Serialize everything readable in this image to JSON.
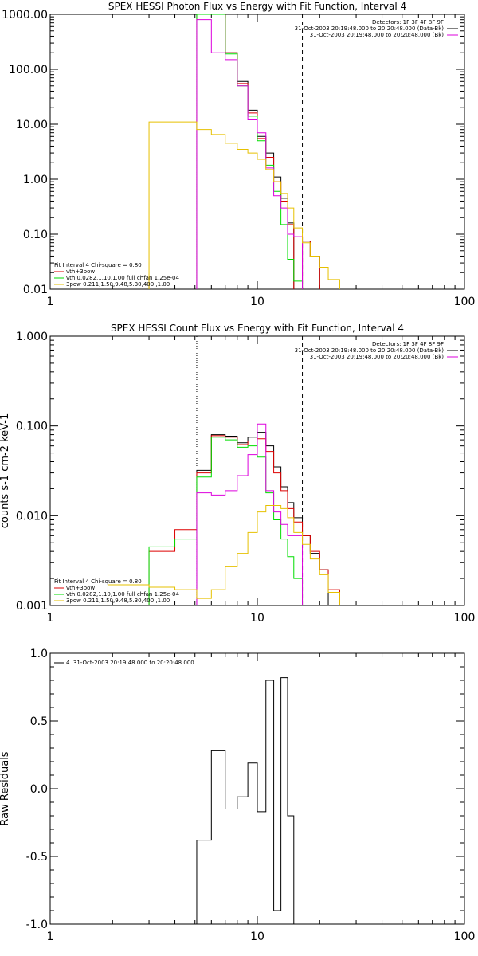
{
  "chart_data": [
    {
      "type": "line",
      "title": "SPEX HESSI Photon Flux vs Energy with Fit Function, Interval 4",
      "xlabel": "",
      "ylabel": "",
      "xscale": "log",
      "yscale": "log",
      "xlim": [
        1,
        100
      ],
      "ylim": [
        0.01,
        1000
      ],
      "x_ticks": [
        1,
        10,
        100
      ],
      "x_tick_labels": [
        "1",
        "10",
        "100"
      ],
      "y_ticks": [
        0.01,
        0.1,
        1,
        10,
        100,
        1000
      ],
      "y_tick_labels": [
        "0.01",
        "0.10",
        "1.00",
        "10.00",
        "100.00",
        "1000.00"
      ],
      "vlines": [
        {
          "x": 5.1,
          "style": "dotted",
          "color": "#cc00cc"
        },
        {
          "x": 16.5,
          "style": "dashed",
          "color": "#000000"
        }
      ],
      "legend_right": [
        "Detectors: 1F 3F 4F 8F 9F",
        "31-Oct-2003 20:19:48.000 to 20:20:48.000 (Data-Bk)",
        "31-Oct-2003 20:19:48.000 to 20:20:48.000 (Bk)"
      ],
      "legend_left": [
        "Fit Interval 4   Chi-square = 0.80",
        "vth+3pow",
        "vth 0.0282,1.10,1.00  full chfan 1.25e-04",
        "3pow 0.211,1.50,9.48,5.30,400.,1.00"
      ],
      "series": [
        {
          "color": "#000000",
          "edges": [
            5.1,
            6.0,
            7.0,
            8.0,
            9.0,
            10.0,
            11.0,
            12.0,
            13.0,
            14.0,
            15.0,
            16.5,
            18.0,
            20.0,
            22.0,
            25.0
          ],
          "values": [
            1000,
            1000,
            200,
            60,
            18,
            6,
            3,
            1.1,
            0.45,
            0.16,
            null,
            0.075,
            0.04,
            null,
            null
          ]
        },
        {
          "color": "#dd0000",
          "edges": [
            5.1,
            6.0,
            7.0,
            8.0,
            9.0,
            10.0,
            11.0,
            12.0,
            13.0,
            14.0,
            15.0,
            16.5,
            18.0,
            20.0,
            22.0,
            25.0
          ],
          "values": [
            1000,
            1000,
            200,
            55,
            16,
            5.5,
            2.5,
            0.9,
            0.4,
            0.15,
            null,
            0.075,
            0.04,
            null,
            null
          ]
        },
        {
          "color": "#00dd00",
          "edges": [
            5.1,
            6.0,
            7.0,
            8.0,
            9.0,
            10.0,
            11.0,
            12.0,
            13.0,
            14.0,
            15.0,
            16.5
          ],
          "values": [
            1000,
            1000,
            190,
            50,
            14,
            5,
            1.8,
            0.6,
            0.15,
            0.035,
            0.014
          ]
        },
        {
          "color": "#dd00dd",
          "edges": [
            5.1,
            6.0,
            7.0,
            8.0,
            9.0,
            10.0,
            11.0,
            12.0,
            13.0,
            14.0,
            15.0,
            16.5
          ],
          "values": [
            800,
            200,
            150,
            50,
            12,
            7,
            1.6,
            0.5,
            0.3,
            0.1,
            0.09
          ]
        },
        {
          "color": "#e6c000",
          "edges": [
            3.0,
            4.0,
            5.1,
            6.0,
            7.0,
            8.0,
            9.0,
            10.0,
            11.0,
            12.0,
            13.0,
            14.0,
            15.0,
            16.5,
            18.0,
            20.0,
            22.0,
            25.0
          ],
          "values": [
            11,
            11,
            8,
            6.5,
            4.5,
            3.5,
            3,
            2.3,
            1.5,
            0.9,
            0.55,
            0.3,
            0.13,
            0.07,
            0.04,
            0.025,
            0.015
          ]
        }
      ]
    },
    {
      "type": "line",
      "title": "SPEX HESSI Count Flux vs Energy with Fit Function, Interval 4",
      "xlabel": "",
      "ylabel": "counts s-1 cm-2 keV-1",
      "xscale": "log",
      "yscale": "log",
      "xlim": [
        1,
        100
      ],
      "ylim": [
        0.001,
        1
      ],
      "x_ticks": [
        1,
        10,
        100
      ],
      "x_tick_labels": [
        "1",
        "10",
        "100"
      ],
      "y_ticks": [
        0.001,
        0.01,
        0.1,
        1
      ],
      "y_tick_labels": [
        "0.001",
        "0.010",
        "0.100",
        "1.000"
      ],
      "vlines": [
        {
          "x": 5.1,
          "style": "dotted",
          "color": "#000000"
        },
        {
          "x": 16.5,
          "style": "dashed",
          "color": "#000000"
        }
      ],
      "legend_right": [
        "Detectors: 1F 3F 4F 8F 9F",
        "31-Oct-2003 20:19:48.000 to 20:20:48.000 (Data-Bk)",
        "31-Oct-2003 20:19:48.000 to 20:20:48.000 (Bk)"
      ],
      "legend_left": [
        "Fit Interval 4   Chi-square = 0.80",
        "vth+3pow",
        "vth 0.0282,1.10,1.00  full chfan 1.25e-04",
        "3pow 0.211,1.50,9.48,5.30,400.,1.00"
      ],
      "series": [
        {
          "color": "#000000",
          "edges": [
            5.1,
            6.0,
            7.0,
            8.0,
            9.0,
            10.0,
            11.0,
            12.0,
            13.0,
            14.0,
            15.0,
            16.5,
            18.0,
            20.0,
            22.0
          ],
          "values": [
            0.032,
            0.08,
            0.077,
            0.065,
            0.075,
            0.085,
            0.06,
            0.035,
            0.021,
            0.014,
            0.0095,
            0.006,
            0.0038,
            0.0025
          ]
        },
        {
          "color": "#dd0000",
          "edges": [
            3.0,
            4.0,
            5.1,
            6.0,
            7.0,
            8.0,
            9.0,
            10.0,
            11.0,
            12.0,
            13.0,
            14.0,
            15.0,
            16.5,
            18.0,
            20.0,
            22.0,
            25.0
          ],
          "values": [
            0.004,
            0.007,
            0.03,
            0.078,
            0.075,
            0.062,
            0.068,
            0.072,
            0.052,
            0.03,
            0.019,
            0.012,
            0.0085,
            0.006,
            0.004,
            0.0025,
            0.0015
          ]
        },
        {
          "color": "#00dd00",
          "edges": [
            3.0,
            4.0,
            5.1,
            6.0,
            7.0,
            8.0,
            9.0,
            10.0,
            11.0,
            12.0,
            13.0,
            14.0,
            15.0,
            16.5
          ],
          "values": [
            0.0045,
            0.0055,
            0.027,
            0.075,
            0.07,
            0.058,
            0.06,
            0.045,
            0.018,
            0.009,
            0.0055,
            0.0035,
            0.002
          ]
        },
        {
          "color": "#dd00dd",
          "edges": [
            5.1,
            6.0,
            7.0,
            8.0,
            9.0,
            10.0,
            11.0,
            12.0,
            13.0,
            14.0,
            15.0,
            16.5
          ],
          "values": [
            0.018,
            0.017,
            0.019,
            0.028,
            0.048,
            0.105,
            0.019,
            0.011,
            0.008,
            0.006,
            0.006
          ]
        },
        {
          "color": "#e6c000",
          "edges": [
            1.9,
            3.0,
            4.0,
            5.1,
            6.0,
            7.0,
            8.0,
            9.0,
            10.0,
            11.0,
            12.0,
            13.0,
            14.0,
            15.0,
            16.5,
            18.0,
            20.0,
            22.0,
            25.0
          ],
          "values": [
            0.0017,
            0.0016,
            0.0015,
            0.0012,
            0.0015,
            0.0027,
            0.0038,
            0.0065,
            0.011,
            0.013,
            0.013,
            0.012,
            0.0095,
            0.0065,
            0.0048,
            0.0033,
            0.0022,
            0.0014
          ]
        }
      ]
    },
    {
      "type": "line",
      "title": "",
      "xlabel": "",
      "ylabel": "Raw Residuals",
      "xscale": "log",
      "yscale": "linear",
      "xlim": [
        1,
        100
      ],
      "ylim": [
        -1.0,
        1.0
      ],
      "x_ticks": [
        1,
        10,
        100
      ],
      "x_tick_labels": [
        "1",
        "10",
        "100"
      ],
      "y_ticks": [
        -1.0,
        -0.5,
        0.0,
        0.5,
        1.0
      ],
      "y_tick_labels": [
        "-1.0",
        "-0.5",
        "0.0",
        "0.5",
        "1.0"
      ],
      "legend_left": [
        "4. 31-Oct-2003 20:19:48.000 to 20:20:48.000"
      ],
      "series": [
        {
          "color": "#000000",
          "edges": [
            5.1,
            6.0,
            7.0,
            8.0,
            9.0,
            10.0,
            11.0,
            12.0,
            13.0,
            14.0,
            15.0,
            16.5
          ],
          "values": [
            -0.38,
            0.28,
            -0.15,
            -0.06,
            0.19,
            -0.17,
            0.8,
            -0.9,
            0.82,
            -0.2,
            null
          ]
        }
      ]
    }
  ]
}
